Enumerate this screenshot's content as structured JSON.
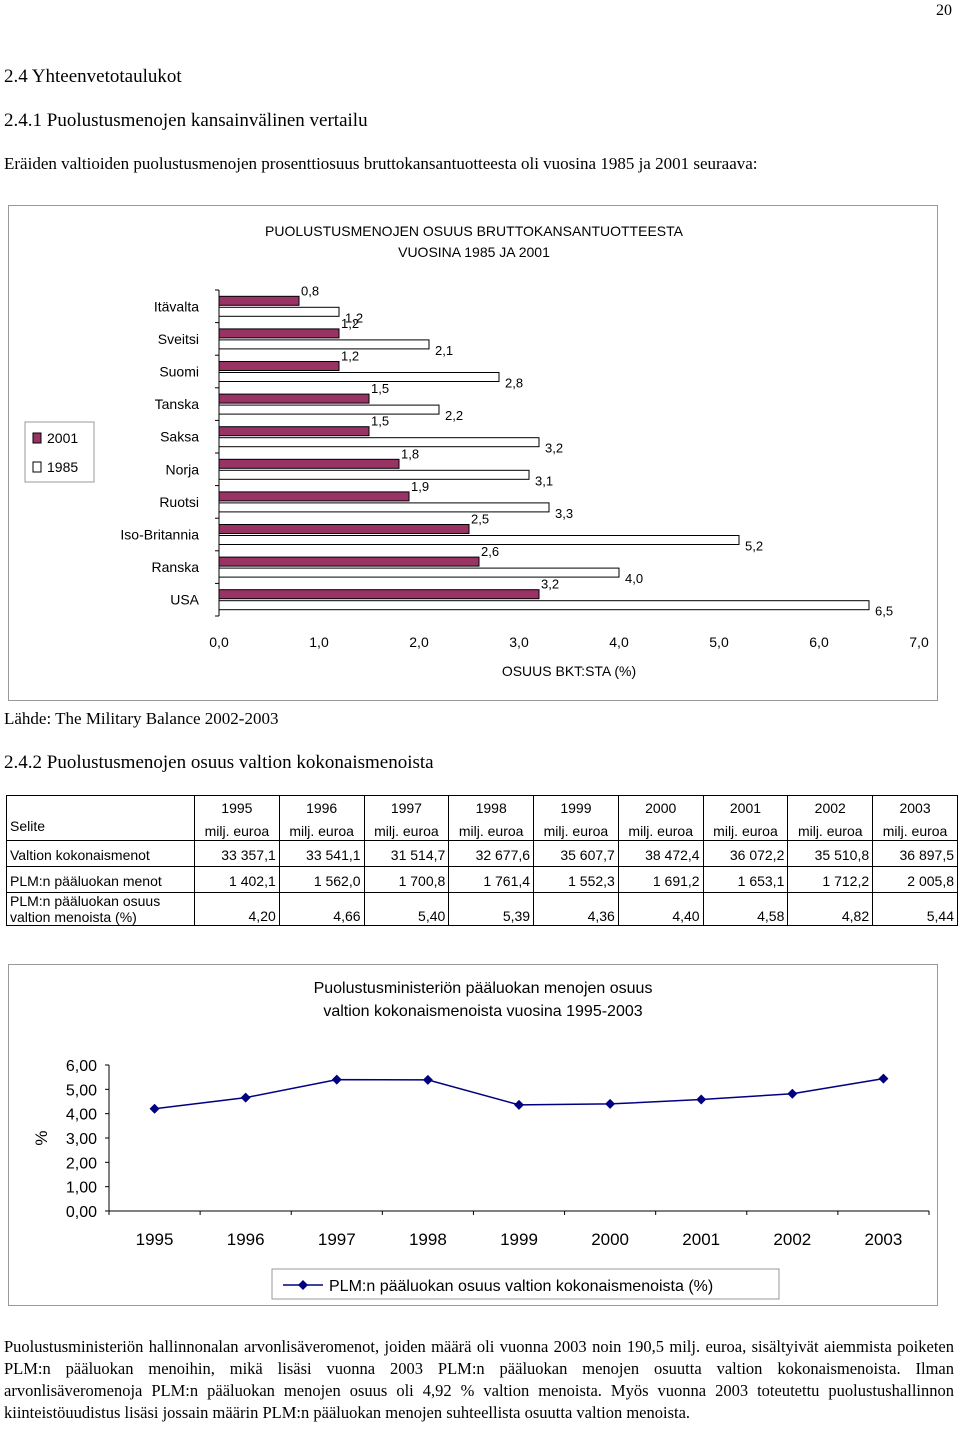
{
  "page_number": "20",
  "heading1": "2.4 Yhteenvetotaulukot",
  "heading2": "2.4.1 Puolustusmenojen kansainvälinen vertailu",
  "intro": "Eräiden valtioiden puolustusmenojen prosenttiosuus bruttokansantuotteesta oli vuosina 1985 ja 2001 seuraava:",
  "source": "Lähde: The Military Balance 2002-2003",
  "heading3": "2.4.2 Puolustusmenojen osuus valtion kokonaismenoista",
  "colors": {
    "bar_2001": "#993366",
    "bar_1985": "#ffffff",
    "line": "#000080"
  },
  "chart_data": [
    {
      "type": "bar",
      "orientation": "horizontal",
      "title": "PUOLUSTUSMENOJEN OSUUS BRUTTOKANSANTUOTTEESTA",
      "subtitle": "VUOSINA 1985 JA 2001",
      "xlabel": "OSUUS BKT:STA (%)",
      "xlim": [
        0,
        7
      ],
      "xticks": [
        "0,0",
        "1,0",
        "2,0",
        "3,0",
        "4,0",
        "5,0",
        "6,0",
        "7,0"
      ],
      "categories": [
        "Itävalta",
        "Sveitsi",
        "Suomi",
        "Tanska",
        "Saksa",
        "Norja",
        "Ruotsi",
        "Iso-Britannia",
        "Ranska",
        "USA"
      ],
      "legend_position": "left",
      "series": [
        {
          "name": "2001",
          "values": [
            0.8,
            1.2,
            1.2,
            1.5,
            1.5,
            1.8,
            1.9,
            2.5,
            2.6,
            3.2
          ],
          "labels": [
            "0,8",
            "1,2",
            "1,2",
            "1,5",
            "1,5",
            "1,8",
            "1,9",
            "2,5",
            "2,6",
            "3,2"
          ]
        },
        {
          "name": "1985",
          "values": [
            1.2,
            2.1,
            2.8,
            2.2,
            3.2,
            3.1,
            3.3,
            5.2,
            4.0,
            6.5
          ],
          "labels": [
            "1,2",
            "2,1",
            "2,8",
            "2,2",
            "3,2",
            "3,1",
            "3,3",
            "5,2",
            "4,0",
            "6,5"
          ]
        }
      ]
    },
    {
      "type": "line",
      "title": "Puolustusministeriön pääluokan menojen osuus",
      "subtitle": "valtion kokonaismenoista vuosina 1995-2003",
      "ylabel": "%",
      "ylim": [
        0,
        6
      ],
      "yticks": [
        "6,00",
        "5,00",
        "4,00",
        "3,00",
        "2,00",
        "1,00",
        "0,00"
      ],
      "categories": [
        "1995",
        "1996",
        "1997",
        "1998",
        "1999",
        "2000",
        "2001",
        "2002",
        "2003"
      ],
      "legend_position": "bottom",
      "series": [
        {
          "name": "PLM:n pääluokan osuus valtion kokonaismenoista (%)",
          "values": [
            4.2,
            4.66,
            5.4,
            5.39,
            4.36,
            4.4,
            4.58,
            4.82,
            5.44
          ]
        }
      ]
    }
  ],
  "table": {
    "selite": "Selite",
    "years": [
      "1995",
      "1996",
      "1997",
      "1998",
      "1999",
      "2000",
      "2001",
      "2002",
      "2003"
    ],
    "unit": "milj. euroa",
    "rows": [
      {
        "label": "Valtion kokonaismenot",
        "values": [
          "33 357,1",
          "33 541,1",
          "31 514,7",
          "32 677,6",
          "35 607,7",
          "38 472,4",
          "36 072,2",
          "35 510,8",
          "36 897,5"
        ]
      },
      {
        "label": "PLM:n pääluokan menot",
        "values": [
          "1 402,1",
          "1 562,0",
          "1 700,8",
          "1 761,4",
          "1 552,3",
          "1 691,2",
          "1 653,1",
          "1 712,2",
          "2 005,8"
        ]
      },
      {
        "label1": "PLM:n pääluokan osuus",
        "label2": "valtion menoista (%)",
        "values": [
          "4,20",
          "4,66",
          "5,40",
          "5,39",
          "4,36",
          "4,40",
          "4,58",
          "4,82",
          "5,44"
        ]
      }
    ]
  },
  "paragraph": "Puolustusministeriön hallinnonalan arvonlisäveromenot, joiden määrä oli vuonna 2003 noin 190,5 milj. euroa, sisältyivät aiemmista poiketen PLM:n pääluokan menoihin, mikä lisäsi vuonna 2003 PLM:n pääluokan menojen osuutta valtion kokonaismenoista. Ilman arvonlisäveromenoja PLM:n pääluokan menojen osuus oli 4,92 % valtion menoista. Myös vuonna 2003 toteutettu puolustushallinnon kiinteistöuudistus lisäsi jossain määrin PLM:n pääluokan menojen suhteellista osuutta valtion menoista."
}
